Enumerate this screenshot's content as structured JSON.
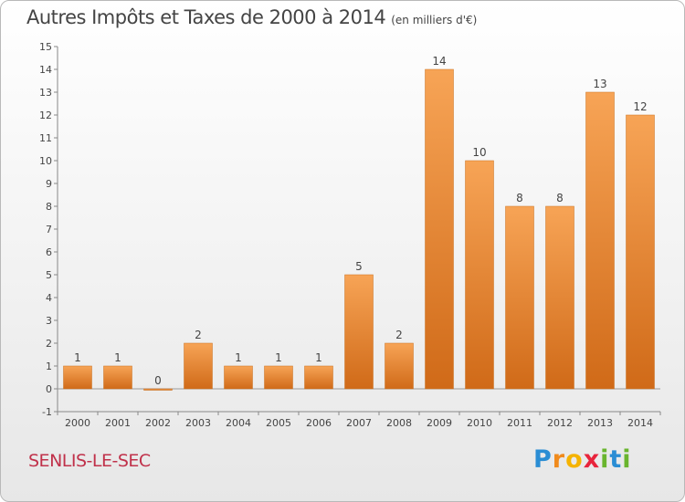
{
  "title": "Autres Impôts et Taxes de 2000 à 2014",
  "unit": "(en milliers d'€)",
  "commune": "SENLIS-LE-SEC",
  "brand": {
    "letters": [
      "P",
      "r",
      "o",
      "x",
      "i",
      "t",
      "i"
    ],
    "colors": [
      "#2a8dd4",
      "#f08a1c",
      "#f5b300",
      "#e8243c",
      "#69b52e",
      "#2a8dd4",
      "#69b52e"
    ]
  },
  "chart_data": {
    "type": "bar",
    "categories": [
      "2000",
      "2001",
      "2002",
      "2003",
      "2004",
      "2005",
      "2006",
      "2007",
      "2008",
      "2009",
      "2010",
      "2011",
      "2012",
      "2013",
      "2014"
    ],
    "values": [
      1,
      1,
      0,
      2,
      1,
      1,
      1,
      5,
      2,
      14,
      10,
      8,
      8,
      13,
      12
    ],
    "data_labels": [
      "1",
      "1",
      "0",
      "2",
      "1",
      "1",
      "1",
      "5",
      "2",
      "14",
      "10",
      "8",
      "8",
      "13",
      "12"
    ],
    "ylim": [
      -1,
      15
    ],
    "yticks": [
      "-1",
      "0",
      "1",
      "2",
      "3",
      "4",
      "5",
      "6",
      "7",
      "8",
      "9",
      "10",
      "11",
      "12",
      "13",
      "14",
      "15"
    ],
    "grid": false,
    "bar_color": "#f0913a"
  }
}
